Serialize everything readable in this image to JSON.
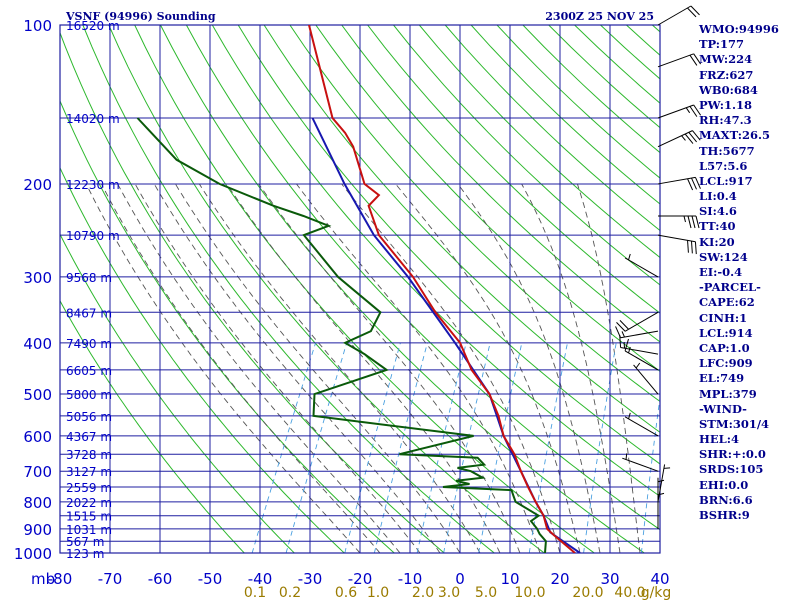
{
  "header": {
    "station": "VSNF (94996) Sounding",
    "time": "2300Z 25 NOV 25"
  },
  "colors": {
    "grid": "#1f1fa0",
    "dry_adiabat": "#2db82d",
    "moist_adiabat": "#555555",
    "mixing_ratio": "#4aa0e0",
    "temperature": "#c81010",
    "dewpoint": "#0a5a0a",
    "parcel": "#1818b0",
    "wind_barb": "#000000",
    "labels": "#0000c8",
    "mixing_label": "#9a7b00"
  },
  "chart_data": {
    "type": "skew-t",
    "pressure_levels": [
      100,
      200,
      300,
      400,
      500,
      600,
      700,
      800,
      900,
      1000
    ],
    "pressure_axis_unit": "mb",
    "temperature_ticks": [
      -80,
      -70,
      -60,
      -50,
      -40,
      -30,
      -20,
      -10,
      0,
      10,
      20,
      30,
      40
    ],
    "mixing_ratio_labels": [
      "0.1",
      "0.2",
      "0.6",
      "1.0",
      "2.0",
      "3.0",
      "5.0",
      "10.0",
      "20.0",
      "40.0",
      "g/kg"
    ],
    "height_labels": [
      {
        "p": 100,
        "text": "16520 m"
      },
      {
        "p": 150,
        "text": "14020 m"
      },
      {
        "p": 200,
        "text": "12230 m"
      },
      {
        "p": 250,
        "text": "10790 m"
      },
      {
        "p": 300,
        "text": "9568 m"
      },
      {
        "p": 350,
        "text": "8467 m"
      },
      {
        "p": 400,
        "text": "7490 m"
      },
      {
        "p": 450,
        "text": "6605 m"
      },
      {
        "p": 500,
        "text": "5800 m"
      },
      {
        "p": 550,
        "text": "5056 m"
      },
      {
        "p": 600,
        "text": "4367 m"
      },
      {
        "p": 650,
        "text": "3728 m"
      },
      {
        "p": 700,
        "text": "3127 m"
      },
      {
        "p": 750,
        "text": "2559 m"
      },
      {
        "p": 800,
        "text": "2022 m"
      },
      {
        "p": 850,
        "text": "1515 m"
      },
      {
        "p": 900,
        "text": "1031 m"
      },
      {
        "p": 950,
        "text": "567 m"
      },
      {
        "p": 1000,
        "text": "123 m"
      }
    ],
    "temperature_profile": [
      {
        "p": 1000,
        "t": 23
      },
      {
        "p": 925,
        "t": 17
      },
      {
        "p": 900,
        "t": 15
      },
      {
        "p": 850,
        "t": 13
      },
      {
        "p": 800,
        "t": 10
      },
      {
        "p": 750,
        "t": 7
      },
      {
        "p": 700,
        "t": 4
      },
      {
        "p": 650,
        "t": 1
      },
      {
        "p": 600,
        "t": -3
      },
      {
        "p": 550,
        "t": -6
      },
      {
        "p": 500,
        "t": -10
      },
      {
        "p": 450,
        "t": -16
      },
      {
        "p": 400,
        "t": -21
      },
      {
        "p": 350,
        "t": -29
      },
      {
        "p": 300,
        "t": -37
      },
      {
        "p": 250,
        "t": -48
      },
      {
        "p": 220,
        "t": -53
      },
      {
        "p": 210,
        "t": -52
      },
      {
        "p": 200,
        "t": -56
      },
      {
        "p": 170,
        "t": -62
      },
      {
        "p": 160,
        "t": -65
      },
      {
        "p": 150,
        "t": -69
      },
      {
        "p": 100,
        "t": -83
      }
    ],
    "dewpoint_profile": [
      {
        "p": 1000,
        "td": 17
      },
      {
        "p": 950,
        "td": 16
      },
      {
        "p": 920,
        "td": 14
      },
      {
        "p": 900,
        "td": 13
      },
      {
        "p": 870,
        "td": 11
      },
      {
        "p": 850,
        "td": 12
      },
      {
        "p": 800,
        "td": 6
      },
      {
        "p": 780,
        "td": 5
      },
      {
        "p": 760,
        "td": 4
      },
      {
        "p": 750,
        "td": -10
      },
      {
        "p": 740,
        "td": -5
      },
      {
        "p": 730,
        "td": -8
      },
      {
        "p": 720,
        "td": -3
      },
      {
        "p": 700,
        "td": -6
      },
      {
        "p": 690,
        "td": -9
      },
      {
        "p": 680,
        "td": -4
      },
      {
        "p": 660,
        "td": -6
      },
      {
        "p": 650,
        "td": -22
      },
      {
        "p": 600,
        "td": -9
      },
      {
        "p": 550,
        "td": -43
      },
      {
        "p": 500,
        "td": -45
      },
      {
        "p": 450,
        "td": -33
      },
      {
        "p": 420,
        "td": -39
      },
      {
        "p": 400,
        "td": -44
      },
      {
        "p": 380,
        "td": -40
      },
      {
        "p": 350,
        "td": -40
      },
      {
        "p": 300,
        "td": -52
      },
      {
        "p": 250,
        "td": -63
      },
      {
        "p": 240,
        "td": -59
      },
      {
        "p": 230,
        "td": -65
      },
      {
        "p": 220,
        "td": -72
      },
      {
        "p": 200,
        "td": -85
      },
      {
        "p": 180,
        "td": -96
      },
      {
        "p": 150,
        "td": -108
      }
    ],
    "parcel_profile": [
      {
        "p": 1000,
        "t": 24
      },
      {
        "p": 914,
        "t": 16
      },
      {
        "p": 850,
        "t": 13
      },
      {
        "p": 800,
        "t": 10
      },
      {
        "p": 700,
        "t": 4
      },
      {
        "p": 600,
        "t": -3
      },
      {
        "p": 500,
        "t": -10
      },
      {
        "p": 400,
        "t": -22
      },
      {
        "p": 300,
        "t": -38
      },
      {
        "p": 250,
        "t": -49
      },
      {
        "p": 200,
        "t": -60
      },
      {
        "p": 150,
        "t": -73
      }
    ],
    "wind_barbs": [
      {
        "p": 100,
        "dir": 60,
        "spd": 20
      },
      {
        "p": 120,
        "dir": 70,
        "spd": 20
      },
      {
        "p": 150,
        "dir": 70,
        "spd": 25
      },
      {
        "p": 170,
        "dir": 65,
        "spd": 35
      },
      {
        "p": 200,
        "dir": 80,
        "spd": 30
      },
      {
        "p": 230,
        "dir": 90,
        "spd": 35
      },
      {
        "p": 250,
        "dir": 100,
        "spd": 30
      },
      {
        "p": 300,
        "dir": 300,
        "spd": 5
      },
      {
        "p": 350,
        "dir": 240,
        "spd": 20
      },
      {
        "p": 380,
        "dir": 260,
        "spd": 15
      },
      {
        "p": 420,
        "dir": 280,
        "spd": 15
      },
      {
        "p": 450,
        "dir": 300,
        "spd": 15
      },
      {
        "p": 500,
        "dir": 320,
        "spd": 5
      },
      {
        "p": 600,
        "dir": 300,
        "spd": 5
      },
      {
        "p": 700,
        "dir": 290,
        "spd": 5
      },
      {
        "p": 800,
        "dir": 10,
        "spd": 5
      },
      {
        "p": 850,
        "dir": 0,
        "spd": 5
      },
      {
        "p": 900,
        "dir": 0,
        "spd": 5
      }
    ]
  },
  "indices": [
    "WMO:94996",
    "TP:177",
    "MW:224",
    "FRZ:627",
    "WB0:684",
    "PW:1.18",
    "RH:47.3",
    "MAXT:26.5",
    "TH:5677",
    "L57:5.6",
    "LCL:917",
    "LI:0.4",
    "SI:4.6",
    "TT:40",
    "KI:20",
    "SW:124",
    "EI:-0.4",
    "-PARCEL-",
    "CAPE:62",
    "CINH:1",
    "LCL:914",
    "CAP:1.0",
    "LFC:909",
    "EL:749",
    "MPL:379",
    "-WIND-",
    "STM:301/4",
    "HEL:4",
    "SHR:+:0.0",
    "SRDS:105",
    "EHI:0.0",
    "BRN:6.6",
    "BSHR:9"
  ]
}
